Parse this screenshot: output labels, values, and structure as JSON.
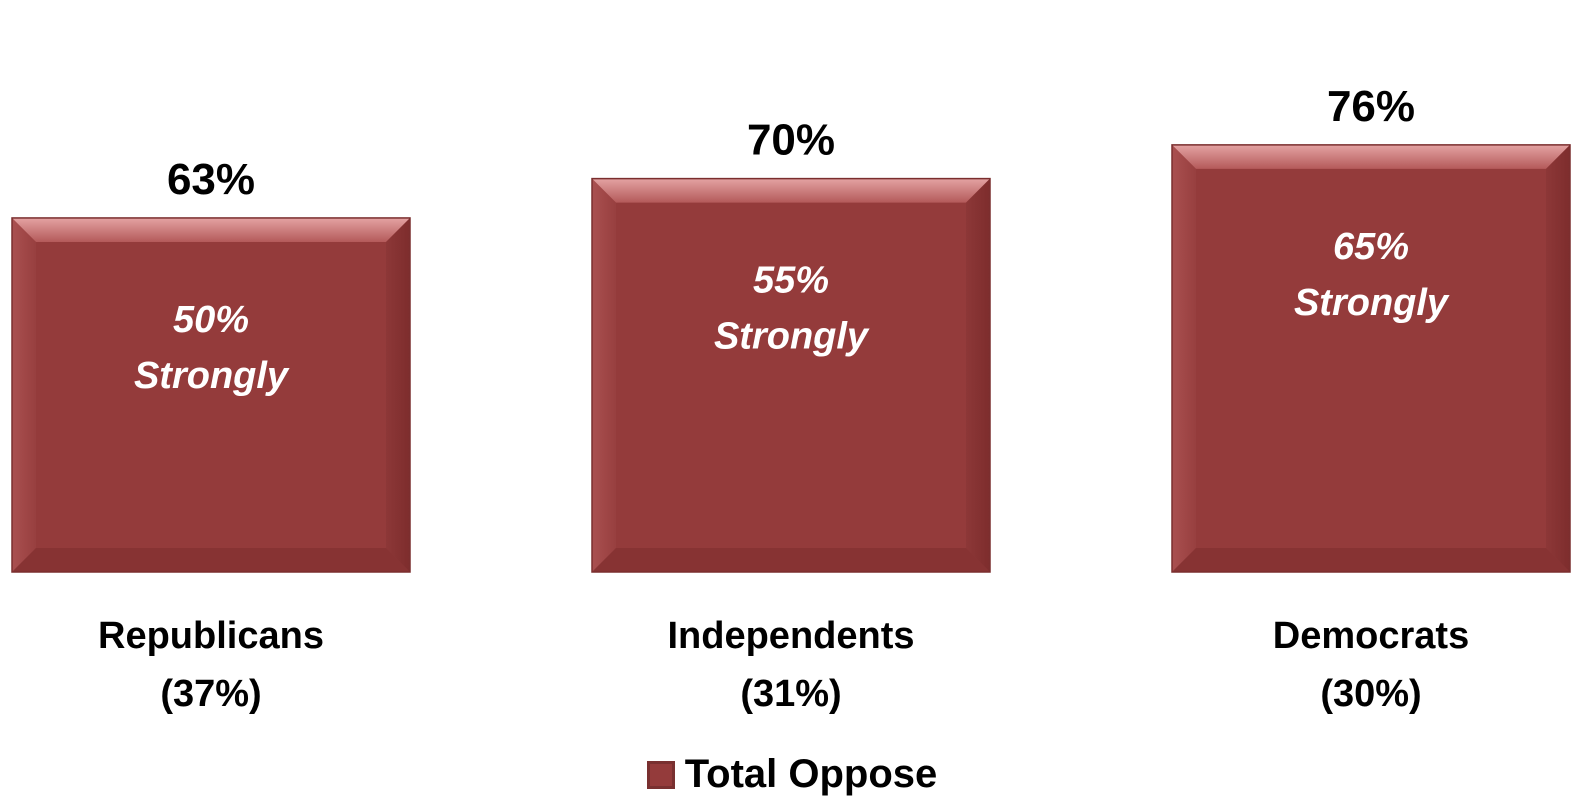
{
  "chart_data": {
    "type": "bar",
    "categories": [
      [
        "Republicans",
        "(37%)"
      ],
      [
        "Independents",
        "(31%)"
      ],
      [
        "Democrats",
        "(30%)"
      ]
    ],
    "series": [
      {
        "name": "Total Oppose",
        "values": [
          63,
          70,
          76
        ],
        "value_labels": [
          "63%",
          "70%",
          "76%"
        ],
        "inner_labels": [
          [
            "50%",
            "Strongly"
          ],
          [
            "55%",
            "Strongly"
          ],
          [
            "65%",
            "Strongly"
          ]
        ],
        "color": "#943B3B"
      }
    ],
    "ylim": [
      0,
      100
    ],
    "grid": false,
    "legend_position": "bottom"
  }
}
